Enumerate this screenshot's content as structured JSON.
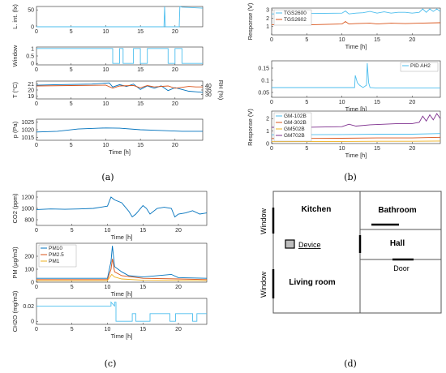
{
  "panel_labels": [
    "(a)",
    "(b)",
    "(c)",
    "(d)"
  ],
  "colors": {
    "blue": "#1f77b4",
    "mblue": "#0072bd",
    "orange": "#d95319",
    "yellow": "#edb120",
    "purple": "#7e2f8e",
    "green": "#77ac30",
    "lblue": "#4dbeee"
  },
  "chart_data": [
    {
      "type": "line",
      "panel": "a1",
      "ylabel": "L. int. (lx)",
      "xlabel": "",
      "xlim": [
        0,
        24
      ],
      "ylim": [
        0,
        60
      ],
      "xticks": [
        0,
        5,
        10,
        15,
        20
      ],
      "yticks": [
        0,
        50
      ],
      "series": [
        {
          "x": [
            0,
            12,
            18.4,
            18.5,
            18.6,
            19.5,
            20.6,
            20.7,
            21,
            24
          ],
          "y": [
            0,
            0,
            0,
            60,
            0,
            0,
            0,
            60,
            58,
            55
          ]
        }
      ]
    },
    {
      "type": "line",
      "panel": "a2",
      "ylabel": "Window",
      "xlabel": "",
      "xlim": [
        0,
        24
      ],
      "ylim": [
        -0.1,
        1.1
      ],
      "xticks": [
        0,
        5,
        10,
        15,
        20
      ],
      "yticks": [
        0,
        0.5,
        1
      ],
      "series": [
        {
          "x": [
            0,
            11,
            11,
            12,
            12,
            12.5,
            12.5,
            14,
            14,
            15,
            15,
            16,
            16,
            19,
            19,
            20,
            20,
            21,
            21,
            24
          ],
          "y": [
            1,
            1,
            0,
            0,
            1,
            1,
            0,
            0,
            1,
            1,
            0,
            0,
            1,
            1,
            0,
            0,
            1,
            1,
            0,
            0
          ]
        }
      ]
    },
    {
      "type": "line",
      "panel": "a3",
      "ylabel": "T (°C)",
      "ylabel2": "RH (%)",
      "xlabel": "",
      "xlim": [
        0,
        24
      ],
      "ylim": [
        18.5,
        21.5
      ],
      "ylim2": [
        25,
        45
      ],
      "xticks": [
        0,
        5,
        10,
        15,
        20
      ],
      "yticks": [
        19,
        20,
        21
      ],
      "yticks2": [
        30,
        35,
        40
      ],
      "series": [
        {
          "axis": "left",
          "x": [
            0,
            3,
            8,
            10.5,
            11,
            12,
            13,
            14,
            15,
            16,
            17,
            18,
            19,
            20,
            21,
            22,
            23,
            24
          ],
          "y": [
            20.8,
            20.9,
            21,
            21.2,
            20.5,
            20.9,
            20.6,
            21,
            20.1,
            20.7,
            20.3,
            20.7,
            19.9,
            20.4,
            20.1,
            19.8,
            19.7,
            19.6
          ]
        },
        {
          "axis": "right",
          "x": [
            0,
            5,
            10,
            11,
            12,
            14,
            15,
            16,
            17,
            19,
            20,
            21,
            22,
            23,
            24
          ],
          "y": [
            39.5,
            40,
            40.5,
            37,
            39.5,
            40,
            37.5,
            40,
            38.5,
            39.5,
            37,
            38,
            39,
            38.5,
            38.5
          ]
        }
      ]
    },
    {
      "type": "line",
      "panel": "a4",
      "ylabel": "p (Pa)",
      "xlabel": "Time [h]",
      "xlim": [
        0,
        24
      ],
      "ylim": [
        1013,
        1027
      ],
      "xticks": [
        0,
        5,
        10,
        15,
        20
      ],
      "yticks": [
        1015,
        1020,
        1025
      ],
      "series": [
        {
          "x": [
            0,
            3,
            6,
            9,
            10,
            12,
            15,
            18,
            21,
            24
          ],
          "y": [
            1018.5,
            1019,
            1020.5,
            1021,
            1021.2,
            1021,
            1020,
            1019.5,
            1019,
            1019
          ]
        }
      ]
    },
    {
      "type": "line",
      "panel": "b1",
      "ylabel": "Response (V)",
      "xlabel": "Time [h]",
      "xlim": [
        0,
        24
      ],
      "ylim": [
        0,
        3.2
      ],
      "xticks": [
        0,
        5,
        10,
        15,
        20
      ],
      "yticks": [
        1,
        2,
        3
      ],
      "legend": "top-left",
      "series": [
        {
          "name": "TGS2600",
          "x": [
            0,
            5,
            10,
            10.5,
            11,
            12,
            13,
            14,
            15,
            16,
            17,
            18,
            19,
            20,
            21,
            21.5,
            22,
            22.5,
            23,
            23.5,
            24
          ],
          "y": [
            2.5,
            2.55,
            2.6,
            2.85,
            2.5,
            2.6,
            2.65,
            2.8,
            2.6,
            2.75,
            2.6,
            2.7,
            2.7,
            2.6,
            2.7,
            3.1,
            2.7,
            3.1,
            2.8,
            3.1,
            2.8
          ]
        },
        {
          "name": "TGS2602",
          "x": [
            0,
            5,
            10,
            10.5,
            11,
            12,
            14,
            15,
            17,
            19,
            21,
            24
          ],
          "y": [
            1.2,
            1.2,
            1.3,
            1.6,
            1.3,
            1.35,
            1.4,
            1.3,
            1.4,
            1.35,
            1.4,
            1.45
          ]
        }
      ]
    },
    {
      "type": "line",
      "panel": "b2",
      "ylabel": "",
      "xlabel": "Time [h]",
      "xlim": [
        0,
        24
      ],
      "ylim": [
        0.03,
        0.18
      ],
      "xticks": [
        0,
        5,
        10,
        15,
        20
      ],
      "yticks": [
        0.05,
        0.1,
        0.15
      ],
      "legend": "top-right",
      "series": [
        {
          "name": "PID AH2",
          "x": [
            0,
            10,
            11.8,
            11.9,
            12.2,
            12.5,
            13,
            13.5,
            13.6,
            13.8,
            14,
            15,
            20,
            24
          ],
          "y": [
            0.07,
            0.07,
            0.07,
            0.12,
            0.09,
            0.08,
            0.07,
            0.08,
            0.17,
            0.09,
            0.07,
            0.068,
            0.068,
            0.068
          ]
        }
      ]
    },
    {
      "type": "line",
      "panel": "b3",
      "ylabel": "Response (V)",
      "xlabel": "Time [h]",
      "xlim": [
        0,
        24
      ],
      "ylim": [
        0,
        2.6
      ],
      "xticks": [
        0,
        5,
        10,
        15,
        20
      ],
      "yticks": [
        0,
        1,
        2
      ],
      "legend": "top-left",
      "series": [
        {
          "name": "GM-102B",
          "x": [
            0,
            10,
            15,
            20,
            24
          ],
          "y": [
            0.7,
            0.72,
            0.75,
            0.75,
            0.8
          ]
        },
        {
          "name": "GM-302B",
          "x": [
            0,
            10,
            15,
            20,
            24
          ],
          "y": [
            0.4,
            0.42,
            0.45,
            0.45,
            0.5
          ]
        },
        {
          "name": "GM502B",
          "x": [
            0,
            10,
            15,
            20,
            24
          ],
          "y": [
            0.15,
            0.17,
            0.18,
            0.18,
            0.2
          ]
        },
        {
          "name": "GM702B",
          "x": [
            0,
            5,
            10,
            11,
            12,
            14,
            16,
            18,
            20,
            21,
            21.5,
            22,
            22.5,
            23,
            23.5,
            24
          ],
          "y": [
            1.3,
            1.3,
            1.35,
            1.55,
            1.4,
            1.5,
            1.55,
            1.6,
            1.6,
            1.7,
            2.2,
            1.8,
            2.3,
            1.9,
            2.4,
            2.0
          ]
        }
      ]
    },
    {
      "type": "line",
      "panel": "c1",
      "ylabel": "CO2 (ppm)",
      "xlabel": "Time [h]",
      "xlim": [
        0,
        24
      ],
      "ylim": [
        700,
        1300
      ],
      "xticks": [
        0,
        5,
        10,
        15,
        20
      ],
      "yticks": [
        800,
        1000,
        1200
      ],
      "series": [
        {
          "x": [
            0,
            2,
            4,
            6,
            8,
            10,
            10.5,
            11,
            12,
            13,
            13.5,
            14,
            15,
            15.5,
            16,
            17,
            18,
            19,
            19.5,
            20,
            21,
            22,
            23,
            24
          ],
          "y": [
            980,
            990,
            985,
            990,
            1000,
            1040,
            1200,
            1150,
            1100,
            950,
            850,
            900,
            1050,
            1000,
            900,
            1000,
            1020,
            1000,
            850,
            900,
            920,
            960,
            900,
            920
          ]
        }
      ]
    },
    {
      "type": "line",
      "panel": "c2",
      "ylabel": "PM (µg/m3)",
      "xlabel": "Time [h]",
      "xlim": [
        0,
        24
      ],
      "ylim": [
        0,
        300
      ],
      "xticks": [
        0,
        5,
        10,
        15,
        20
      ],
      "yticks": [
        0,
        100,
        200
      ],
      "legend": "top-left",
      "series": [
        {
          "name": "PM10",
          "x": [
            0,
            10,
            10.5,
            10.7,
            11,
            12,
            13,
            15,
            19,
            20,
            24
          ],
          "y": [
            30,
            30,
            160,
            280,
            120,
            80,
            50,
            40,
            60,
            35,
            30
          ]
        },
        {
          "name": "PM2.5",
          "x": [
            0,
            10,
            10.5,
            10.7,
            11,
            12,
            15,
            20,
            24
          ],
          "y": [
            20,
            20,
            100,
            180,
            80,
            50,
            30,
            25,
            20
          ]
        },
        {
          "name": "PM1",
          "x": [
            0,
            10,
            10.6,
            11,
            12,
            15,
            24
          ],
          "y": [
            12,
            12,
            60,
            40,
            25,
            15,
            12
          ]
        }
      ]
    },
    {
      "type": "line",
      "panel": "c3",
      "ylabel": "CH2O (mg/m3)",
      "xlabel": "Time [h]",
      "xlim": [
        0,
        24
      ],
      "ylim": [
        -0.004,
        0.03
      ],
      "xticks": [
        0,
        5,
        10,
        15,
        20
      ],
      "yticks": [
        0,
        0.02
      ],
      "series": [
        {
          "x": [
            0,
            10.5,
            10.5,
            11,
            11,
            11.2,
            11.2,
            13.5,
            13.5,
            14,
            14,
            16,
            16,
            18.8,
            18.8,
            19.6,
            19.6,
            22,
            22,
            22.6,
            22.6,
            24
          ],
          "y": [
            0.02,
            0.02,
            0.025,
            0.02,
            0.025,
            0.025,
            0,
            0,
            0.01,
            0.01,
            0,
            0,
            0.01,
            0.01,
            0,
            0,
            0.01,
            0.01,
            0,
            0,
            0.01,
            0.01
          ]
        }
      ]
    }
  ],
  "floorplan": {
    "kitchen": "Kitchen",
    "bathroom": "Bathroom",
    "hall": "Hall",
    "living_room": "Living room",
    "device": "Device",
    "window_top": "Window",
    "window_bottom": "Window",
    "door": "Door"
  }
}
